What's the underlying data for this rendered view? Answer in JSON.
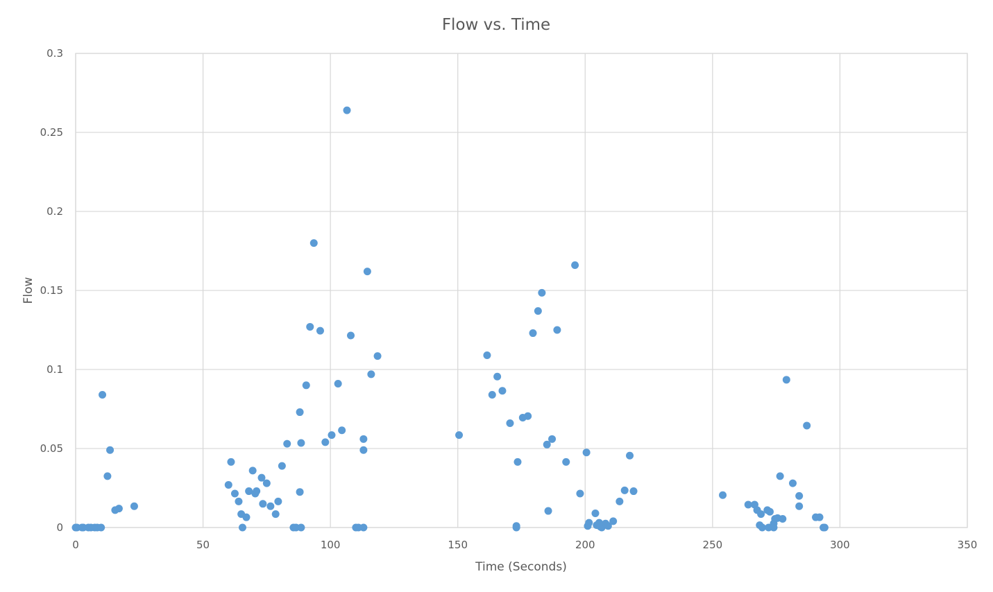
{
  "chart_data": {
    "type": "scatter",
    "title": "Flow vs. Time",
    "xlabel": "Time (Seconds)",
    "ylabel": "Flow",
    "xlim": [
      0,
      350
    ],
    "ylim": [
      0,
      0.3
    ],
    "x_ticks": [
      0,
      50,
      100,
      150,
      200,
      250,
      300,
      350
    ],
    "y_ticks": [
      0,
      0.05,
      0.1,
      0.15,
      0.2,
      0.25,
      0.3
    ],
    "x_tick_labels": [
      "0",
      "50",
      "100",
      "150",
      "200",
      "250",
      "300",
      "350"
    ],
    "y_tick_labels": [
      "0",
      "0.05",
      "0.1",
      "0.15",
      "0.2",
      "0.25",
      "0.3"
    ],
    "grid": true,
    "legend": "none",
    "marker_color": "#5b9bd5",
    "series": [
      {
        "name": "Flow",
        "points": [
          [
            0.0,
            0.0
          ],
          [
            0.5,
            0.0
          ],
          [
            2.5,
            0.0
          ],
          [
            3.0,
            0.0
          ],
          [
            5.0,
            0.0
          ],
          [
            6.0,
            0.0
          ],
          [
            7.5,
            0.0
          ],
          [
            8.5,
            0.0
          ],
          [
            10.0,
            0.0
          ],
          [
            10.5,
            0.084
          ],
          [
            12.5,
            0.0325
          ],
          [
            13.5,
            0.049
          ],
          [
            15.5,
            0.011
          ],
          [
            17.0,
            0.012
          ],
          [
            23.0,
            0.0135
          ],
          [
            60.0,
            0.027
          ],
          [
            61.0,
            0.0415
          ],
          [
            62.5,
            0.0215
          ],
          [
            64.0,
            0.0165
          ],
          [
            65.0,
            0.0085
          ],
          [
            65.5,
            0.0
          ],
          [
            67.0,
            0.0065
          ],
          [
            68.0,
            0.023
          ],
          [
            69.5,
            0.036
          ],
          [
            70.5,
            0.0215
          ],
          [
            71.0,
            0.023
          ],
          [
            73.0,
            0.0315
          ],
          [
            73.5,
            0.015
          ],
          [
            75.0,
            0.028
          ],
          [
            76.5,
            0.0135
          ],
          [
            78.5,
            0.0085
          ],
          [
            79.5,
            0.0165
          ],
          [
            81.0,
            0.039
          ],
          [
            83.0,
            0.053
          ],
          [
            85.5,
            0.0
          ],
          [
            86.5,
            0.0
          ],
          [
            88.0,
            0.073
          ],
          [
            88.0,
            0.0225
          ],
          [
            88.5,
            0.0535
          ],
          [
            88.5,
            0.0
          ],
          [
            90.5,
            0.09
          ],
          [
            92.0,
            0.127
          ],
          [
            93.5,
            0.18
          ],
          [
            96.0,
            0.1245
          ],
          [
            98.0,
            0.054
          ],
          [
            100.5,
            0.0585
          ],
          [
            103.0,
            0.091
          ],
          [
            104.5,
            0.0615
          ],
          [
            106.5,
            0.264
          ],
          [
            108.0,
            0.1215
          ],
          [
            110.0,
            0.0
          ],
          [
            111.0,
            0.0
          ],
          [
            113.0,
            0.0
          ],
          [
            113.0,
            0.056
          ],
          [
            113.0,
            0.049
          ],
          [
            114.5,
            0.162
          ],
          [
            116.0,
            0.097
          ],
          [
            118.5,
            0.1085
          ],
          [
            150.5,
            0.0585
          ],
          [
            161.5,
            0.109
          ],
          [
            163.5,
            0.084
          ],
          [
            165.5,
            0.0955
          ],
          [
            167.5,
            0.0865
          ],
          [
            170.5,
            0.066
          ],
          [
            173.0,
            0.001
          ],
          [
            173.0,
            0.0
          ],
          [
            173.5,
            0.0415
          ],
          [
            175.5,
            0.0695
          ],
          [
            177.5,
            0.0705
          ],
          [
            179.5,
            0.123
          ],
          [
            181.5,
            0.137
          ],
          [
            183.0,
            0.1485
          ],
          [
            185.0,
            0.0525
          ],
          [
            185.5,
            0.0105
          ],
          [
            187.0,
            0.056
          ],
          [
            189.0,
            0.125
          ],
          [
            192.5,
            0.0415
          ],
          [
            196.0,
            0.166
          ],
          [
            198.0,
            0.0215
          ],
          [
            200.5,
            0.0475
          ],
          [
            201.0,
            0.001
          ],
          [
            201.5,
            0.003
          ],
          [
            204.0,
            0.009
          ],
          [
            204.5,
            0.0015
          ],
          [
            205.5,
            0.003
          ],
          [
            206.0,
            0.0005
          ],
          [
            206.5,
            0.0
          ],
          [
            208.0,
            0.0025
          ],
          [
            209.0,
            0.001
          ],
          [
            211.0,
            0.004
          ],
          [
            213.5,
            0.0165
          ],
          [
            215.5,
            0.0235
          ],
          [
            217.5,
            0.0455
          ],
          [
            219.0,
            0.023
          ],
          [
            254.0,
            0.0205
          ],
          [
            264.0,
            0.0145
          ],
          [
            266.5,
            0.0145
          ],
          [
            267.5,
            0.011
          ],
          [
            268.5,
            0.0015
          ],
          [
            269.0,
            0.0085
          ],
          [
            269.5,
            0.0
          ],
          [
            271.5,
            0.011
          ],
          [
            272.0,
            0.0
          ],
          [
            272.5,
            0.01
          ],
          [
            274.0,
            0.0025
          ],
          [
            274.0,
            0.0
          ],
          [
            274.5,
            0.0055
          ],
          [
            275.5,
            0.006
          ],
          [
            276.5,
            0.0325
          ],
          [
            277.5,
            0.0055
          ],
          [
            279.0,
            0.0935
          ],
          [
            281.5,
            0.028
          ],
          [
            284.0,
            0.02
          ],
          [
            284.0,
            0.0135
          ],
          [
            287.0,
            0.0645
          ],
          [
            290.5,
            0.0065
          ],
          [
            292.0,
            0.0065
          ],
          [
            293.5,
            0.0
          ],
          [
            294.0,
            0.0
          ]
        ]
      }
    ]
  }
}
